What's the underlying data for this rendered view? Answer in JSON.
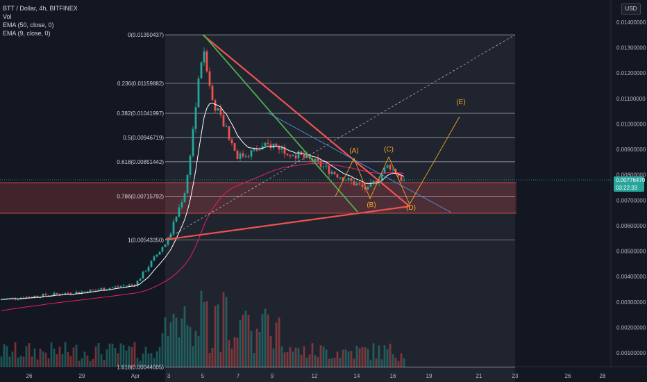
{
  "legend": {
    "line1": "BTT / Dollar, 4h, BITFINEX",
    "line2": "Vol",
    "line3": "EMA (50, close, 0)",
    "line4": "EMA (9, close, 0)"
  },
  "currency_label": "USD",
  "last_price": "0.00776470",
  "countdown": "03:22:33",
  "colors": {
    "background": "#131722",
    "up": "#26a69a",
    "down": "#ef5350",
    "ema9": "#ffffff",
    "ema50": "#e91e63",
    "fib_zone": "#ef5350",
    "wave_label": "#f5a623"
  },
  "price_axis": [
    "0.01400000",
    "0.01300000",
    "0.01200000",
    "0.01100000",
    "0.01000000",
    "0.00900000",
    "0.00800000",
    "0.00700000",
    "0.00600000",
    "0.00500000",
    "0.00400000",
    "0.00300000",
    "0.00200000",
    "0.00100000"
  ],
  "time_axis": [
    "26",
    "29",
    "Apr",
    "3",
    "5",
    "7",
    "9",
    "12",
    "14",
    "16",
    "19",
    "21",
    "23",
    "26",
    "28"
  ],
  "fib_levels": [
    {
      "label": "0(0.01350437)",
      "value": 0.01350437
    },
    {
      "label": "0.236(0.01159882)",
      "value": 0.01159882
    },
    {
      "label": "0.382(0.01041997)",
      "value": 0.01041997
    },
    {
      "label": "0.5(0.00946719)",
      "value": 0.00946719
    },
    {
      "label": "0.618(0.00851442)",
      "value": 0.00851442
    },
    {
      "label": "0.786(0.00715792)",
      "value": 0.00715792
    },
    {
      "label": "1(0.00543350)",
      "value": 0.0054335
    },
    {
      "label": "1.618(0.00044005)",
      "value": 0.00044005
    }
  ],
  "wave_labels": [
    "(A)",
    "(B)",
    "(C)",
    "(D)",
    "(E)"
  ],
  "chart_data": {
    "type": "candlestick",
    "symbol": "BTT / Dollar",
    "interval": "4h",
    "exchange": "BITFINEX",
    "indicators": [
      "Vol",
      "EMA (50, close, 0)",
      "EMA (9, close, 0)"
    ],
    "ylim": [
      0.0,
      0.0144
    ],
    "x_ticks": [
      "26",
      "29",
      "Apr",
      "3",
      "5",
      "7",
      "9",
      "12",
      "14",
      "16",
      "19",
      "21",
      "23",
      "26",
      "28"
    ],
    "close_path": [
      [
        "26",
        0.0031
      ],
      [
        "29",
        0.0034
      ],
      [
        "Apr",
        0.0037
      ],
      [
        "3",
        0.0055
      ],
      [
        "5",
        0.013
      ],
      [
        "7",
        0.0087
      ],
      [
        "9",
        0.009
      ],
      [
        "12",
        0.0083
      ],
      [
        "14",
        0.008
      ],
      [
        "16",
        0.008
      ]
    ],
    "last_price": 0.0077647
  }
}
